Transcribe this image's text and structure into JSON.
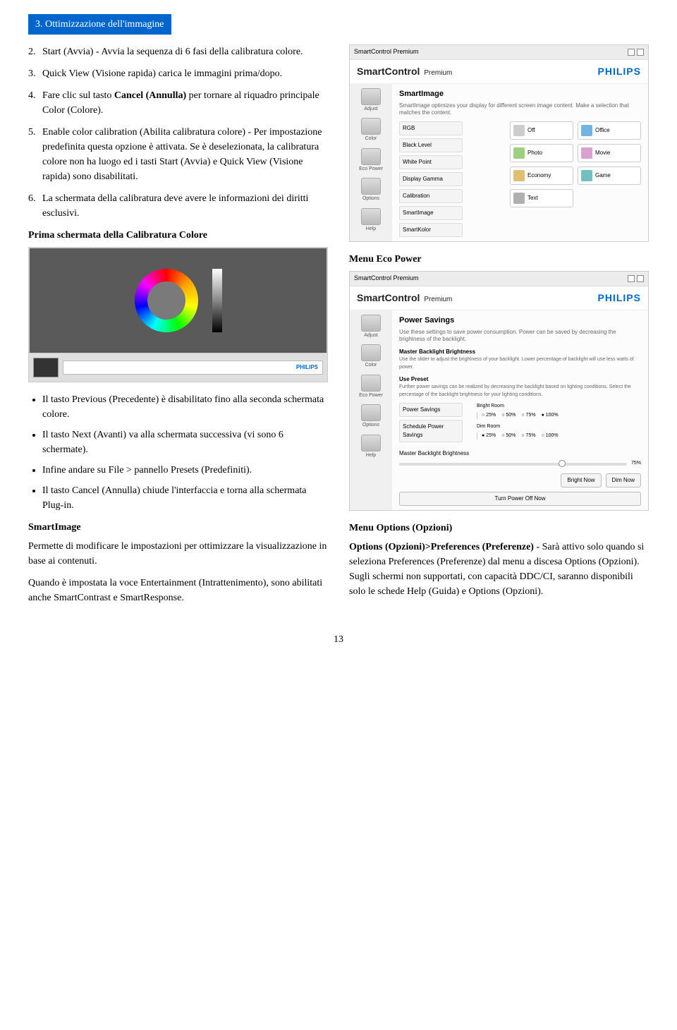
{
  "section_header": "3. Ottimizzazione dell'immagine",
  "left": {
    "items": [
      {
        "n": "2.",
        "t": "Start (Avvia) - Avvia la sequenza di 6 fasi della calibratura colore."
      },
      {
        "n": "3.",
        "t": "Quick View (Visione rapida) carica le immagini prima/dopo."
      },
      {
        "n": "4.",
        "t": "Fare clic sul tasto Cancel (Annulla) per tornare al riquadro principale Color (Colore).",
        "b": "Cancel (Annulla)"
      },
      {
        "n": "5.",
        "t": "Enable color calibration (Abilita calibratura colore) - Per impostazione predefinita questa opzione è attivata. Se è deselezionata, la calibratura colore non ha luogo ed i tasti Start (Avvia) e Quick View (Visione rapida) sono disabilitati."
      },
      {
        "n": "6.",
        "t": "La schermata della calibratura deve avere le informazioni dei diritti esclusivi."
      }
    ],
    "subtitle": "Prima schermata della Calibratura Colore",
    "bullets": [
      "Il tasto Previous (Precedente) è disabilitato fino alla seconda schermata colore.",
      "Il tasto Next (Avanti) va alla schermata successiva (vi sono 6 schermate).",
      "Infine andare su File > pannello Presets (Predefiniti).",
      "Il tasto Cancel (Annulla) chiude l'interfaccia e torna alla schermata Plug-in."
    ],
    "si_title": "SmartImage",
    "si_text": "Permette di modificare le impostazioni per ottimizzare la visualizzazione in base ai contenuti.",
    "si_text2": "Quando è impostata la voce Entertainment (Intrattenimento), sono abilitati anche SmartContrast e SmartResponse."
  },
  "right": {
    "eco_label": "Menu Eco Power",
    "opts_label": "Menu Options (Opzioni)",
    "opts_text_parts": {
      "lead": "Options (Opzioni)>Preferences (Preferenze)",
      "rest": " - Sarà attivo solo quando si seleziona Preferences (Preferenze) dal menu a discesa Options (Opzioni). Sugli schermi non supportati, con capacità DDC/CI, saranno disponibili solo le schede Help (Guida) e Options (Opzioni)."
    }
  },
  "scr_common": {
    "titlebar": "SmartControl Premium",
    "brand": "SmartControl",
    "brand_suffix": "Premium",
    "philips": "PHILIPS",
    "sidebar": [
      "Adjust",
      "Color",
      "Eco Power",
      "Options",
      "Help"
    ]
  },
  "scr1": {
    "panel_title": "SmartImage",
    "panel_desc": "SmartImage optimizes your display for different screen image content. Make a selection that matches the content.",
    "menu": [
      "RGB",
      "Black Level",
      "White Point",
      "Display Gamma",
      "Calibration",
      "SmartImage",
      "SmartKolor"
    ],
    "presets": [
      {
        "l": "Off",
        "c": "#cccccc"
      },
      {
        "l": "Office",
        "c": "#6fb4e3"
      },
      {
        "l": "Photo",
        "c": "#9ed080"
      },
      {
        "l": "Movie",
        "c": "#d9a0d0"
      },
      {
        "l": "Economy",
        "c": "#e0c070"
      },
      {
        "l": "Game",
        "c": "#70c0c0"
      },
      {
        "l": "Text",
        "c": "#b0b0b0"
      }
    ]
  },
  "scr_cal": {
    "footer_brand": "PHILIPS"
  },
  "scr2": {
    "panel_title": "Power Savings",
    "panel_desc": "Use these settings to save power consumption. Power can be saved by decreasing the brightness of the backlight.",
    "g1_title": "Master Backlight Brightness",
    "g1_desc": "Use the slider to adjust the brightness of your backlight. Lower percentage of backlight will use less watts of power.",
    "g2_title": "Use Preset",
    "g2_desc": "Further power savings can be realized by decreasing the backlight based on lighting conditions. Select the percentage of the backlight brightness for your lighting conditions.",
    "menu": [
      "Power Savings",
      "Schedule Power Savings"
    ],
    "bright_label": "Bright Room",
    "dim_label": "Dim Room",
    "radios": [
      "25%",
      "50%",
      "75%",
      "100%"
    ],
    "checked_bright": "100%",
    "checked_dim": "25%",
    "mb_label": "Master Backlight Brightness",
    "mb_val": "75%",
    "buttons": [
      "Bright Now",
      "Dim Now",
      "Turn Power Off Now"
    ]
  },
  "page_num": "13"
}
